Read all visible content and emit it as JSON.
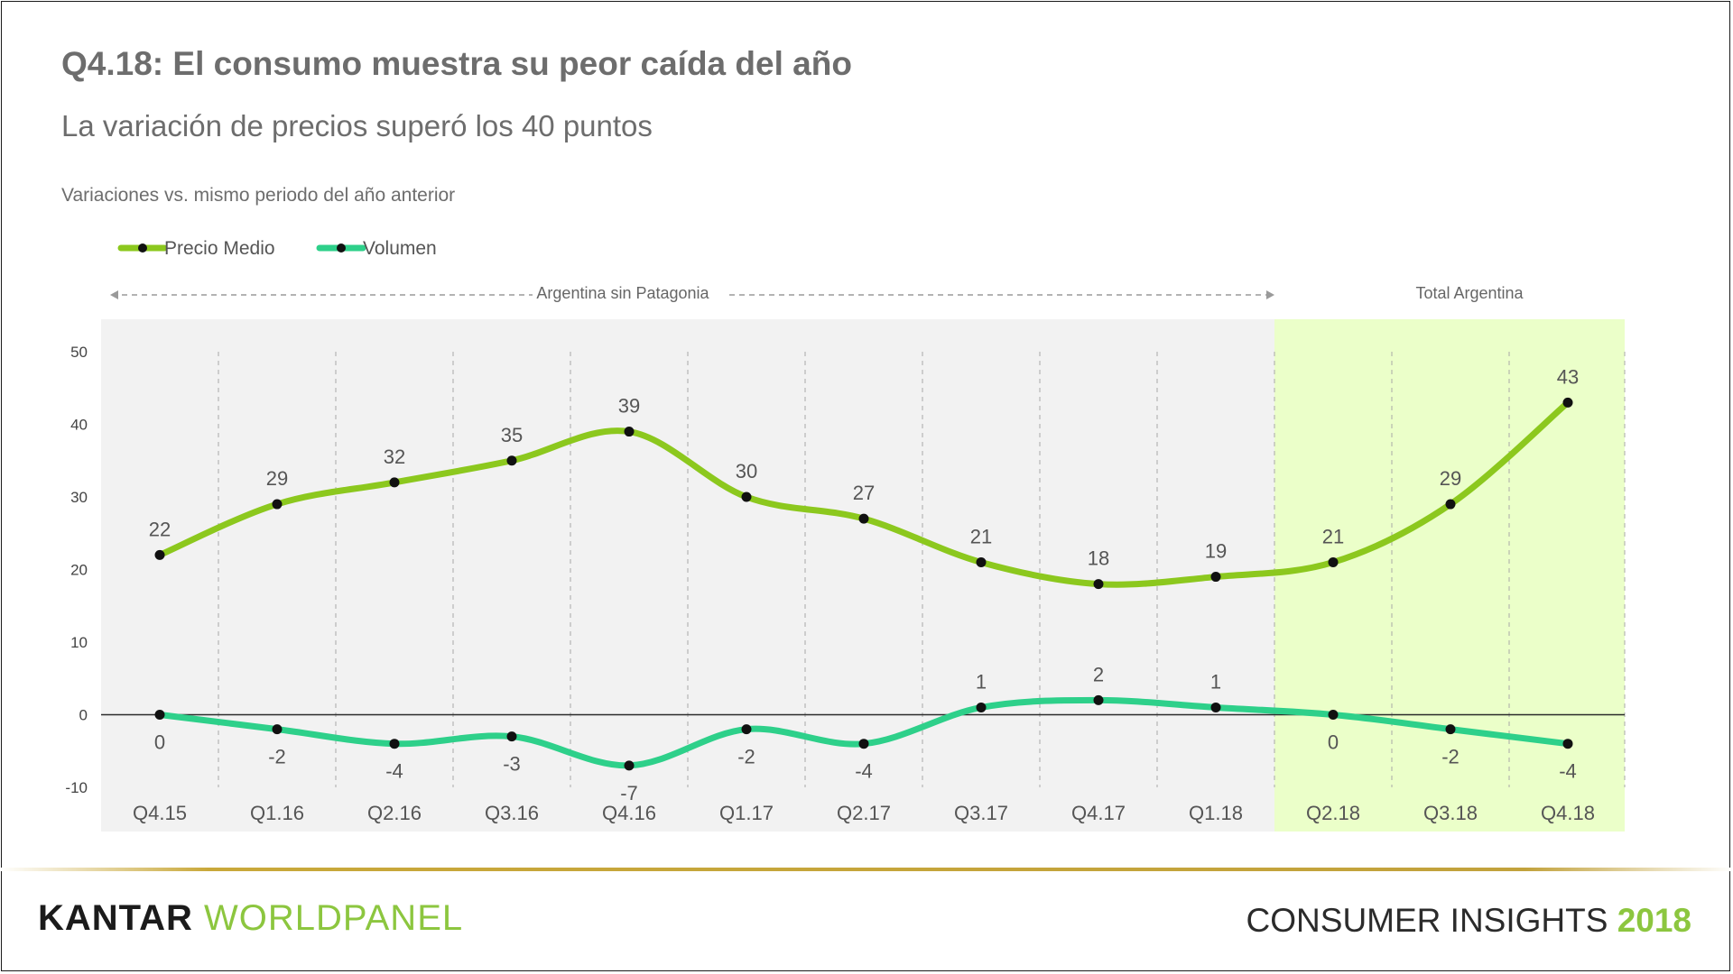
{
  "header": {
    "title": "Q4.18: El consumo muestra su peor caída del año",
    "subtitle": "La variación de precios superó los 40 puntos",
    "note": "Variaciones vs. mismo periodo del año anterior"
  },
  "footer": {
    "brand_main": "KANTAR",
    "brand_secondary": "WORLDPANEL",
    "tagline": "CONSUMER INSIGHTS",
    "tagline_year": "2018"
  },
  "colors": {
    "precio": "#8cc81e",
    "volumen": "#2ed08a",
    "highlight_bg": "#ebffc9",
    "region_bg": "#f2f2f2"
  },
  "chart_data": {
    "type": "line",
    "title": "",
    "xlabel": "",
    "ylabel": "",
    "ylim": [
      -10,
      50
    ],
    "yticks": [
      -10,
      0,
      10,
      20,
      30,
      40,
      50
    ],
    "legend_position": "top-left",
    "categories": [
      "Q4.15",
      "Q1.16",
      "Q2.16",
      "Q3.16",
      "Q4.16",
      "Q1.17",
      "Q2.17",
      "Q3.17",
      "Q4.17",
      "Q1.18",
      "Q2.18",
      "Q3.18",
      "Q4.18"
    ],
    "series": [
      {
        "name": "Precio Medio",
        "values": [
          22,
          29,
          32,
          35,
          39,
          30,
          27,
          21,
          18,
          19,
          21,
          29,
          43
        ]
      },
      {
        "name": "Volumen",
        "values": [
          0,
          -2,
          -4,
          -3,
          -7,
          -2,
          -4,
          1,
          2,
          1,
          0,
          -2,
          -4
        ]
      }
    ],
    "regions": [
      {
        "label": "Argentina sin Patagonia",
        "from": "Q4.15",
        "to": "Q1.18"
      },
      {
        "label": "Total Argentina",
        "from": "Q2.18",
        "to": "Q4.18"
      }
    ]
  }
}
